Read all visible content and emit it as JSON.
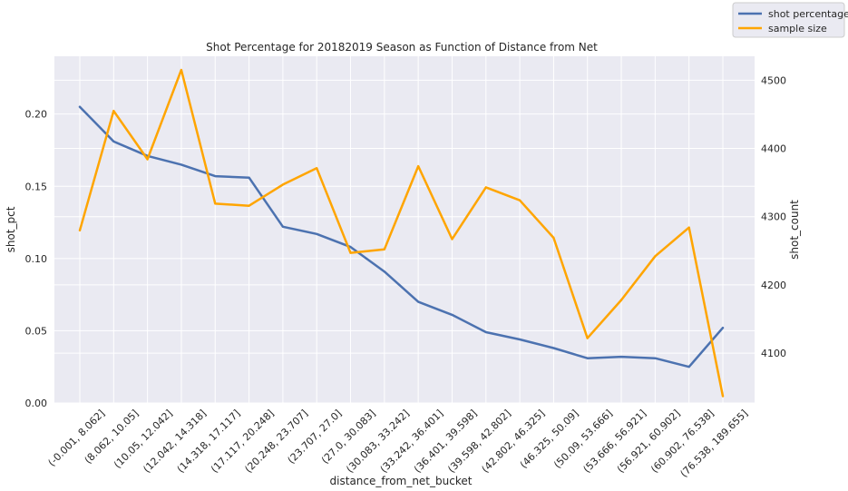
{
  "chart_data": {
    "type": "line",
    "title": "Shot Percentage for 20182019 Season as Function of Distance from Net",
    "xlabel": "distance_from_net_bucket",
    "ylabel_left": "shot_pct",
    "ylabel_right": "shot_count",
    "categories": [
      "(-0.001, 8.062]",
      "(8.062, 10.05]",
      "(10.05, 12.042]",
      "(12.042, 14.318]",
      "(14.318, 17.117]",
      "(17.117, 20.248]",
      "(20.248, 23.707]",
      "(23.707, 27.0]",
      "(27.0, 30.083]",
      "(30.083, 33.242]",
      "(33.242, 36.401]",
      "(36.401, 39.598]",
      "(39.598, 42.802]",
      "(42.802, 46.325]",
      "(46.325, 50.09]",
      "(50.09, 53.666]",
      "(53.666, 56.921]",
      "(56.921, 60.902]",
      "(60.902, 76.538]",
      "(76.538, 189.655]"
    ],
    "ylim_left": [
      0,
      0.24
    ],
    "yticks_left": [
      "0.00",
      "0.05",
      "0.10",
      "0.15",
      "0.20"
    ],
    "ylim_right": [
      4027,
      4535
    ],
    "yticks_right": [
      "4100",
      "4200",
      "4300",
      "4400",
      "4500"
    ],
    "series": [
      {
        "name": "shot percentage",
        "axis": "left",
        "color": "#4c72b0",
        "values": [
          0.205,
          0.181,
          0.171,
          0.165,
          0.157,
          0.156,
          0.122,
          0.117,
          0.108,
          0.091,
          0.07,
          0.061,
          0.049,
          0.044,
          0.038,
          0.031,
          0.032,
          0.031,
          0.025,
          0.052
        ]
      },
      {
        "name": "sample size",
        "axis": "right",
        "color": "#ffa500",
        "values": [
          4280,
          4455,
          4384,
          4515,
          4319,
          4316,
          4347,
          4371,
          4247,
          4252,
          4374,
          4267,
          4343,
          4324,
          4269,
          4122,
          4178,
          4242,
          4284,
          4037
        ]
      }
    ],
    "grid": true,
    "legend_position": "top-right"
  }
}
